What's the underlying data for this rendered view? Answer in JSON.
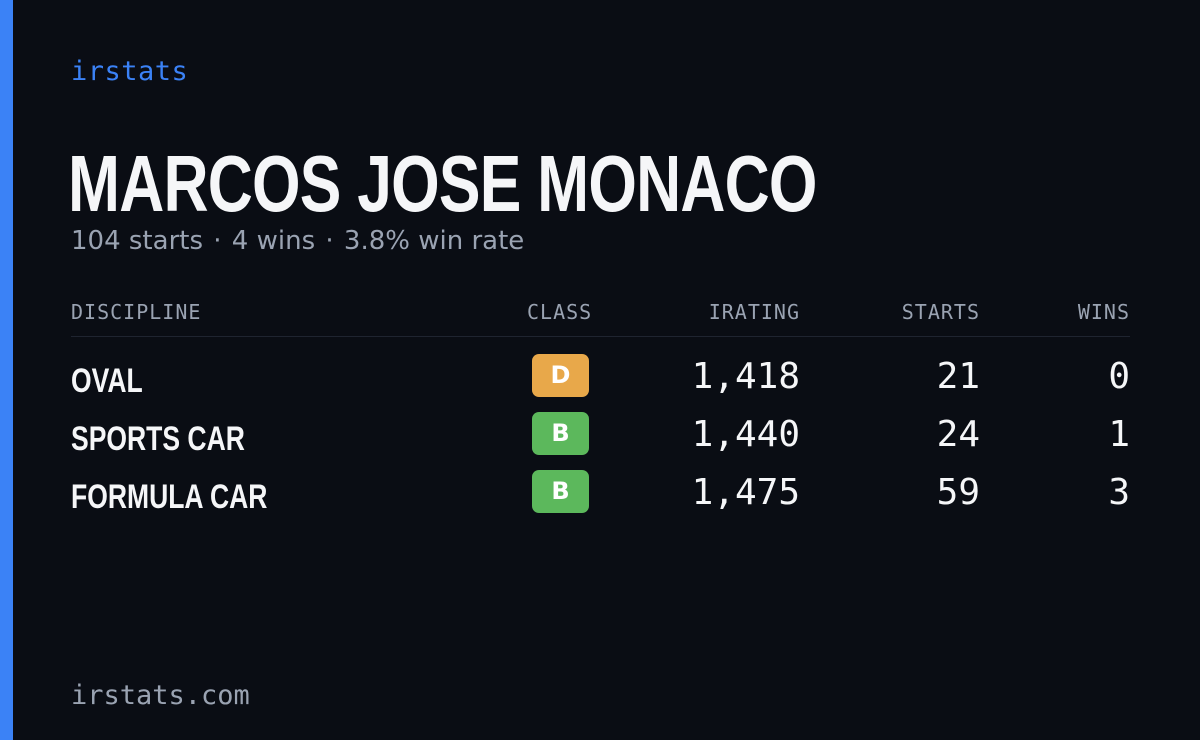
{
  "brand": "irstats",
  "player": {
    "name": "MARCOS JOSE MONACO",
    "starts": "104 starts",
    "wins": "4 wins",
    "win_rate": "3.8% win rate",
    "separator": "·"
  },
  "table": {
    "headers": {
      "discipline": "DISCIPLINE",
      "class": "CLASS",
      "irating": "IRATING",
      "starts": "STARTS",
      "wins": "WINS"
    },
    "rows": [
      {
        "discipline": "OVAL",
        "class": "D",
        "class_color": "#e8a84a",
        "irating": "1,418",
        "starts": "21",
        "wins": "0"
      },
      {
        "discipline": "SPORTS CAR",
        "class": "B",
        "class_color": "#5cb85c",
        "irating": "1,440",
        "starts": "24",
        "wins": "1"
      },
      {
        "discipline": "FORMULA CAR",
        "class": "B",
        "class_color": "#5cb85c",
        "irating": "1,475",
        "starts": "59",
        "wins": "3"
      }
    ]
  },
  "footer": "irstats.com",
  "colors": {
    "background": "#0a0d14",
    "accent": "#3b82f6",
    "text_primary": "#f5f6f8",
    "text_muted": "#9aa3b2"
  }
}
